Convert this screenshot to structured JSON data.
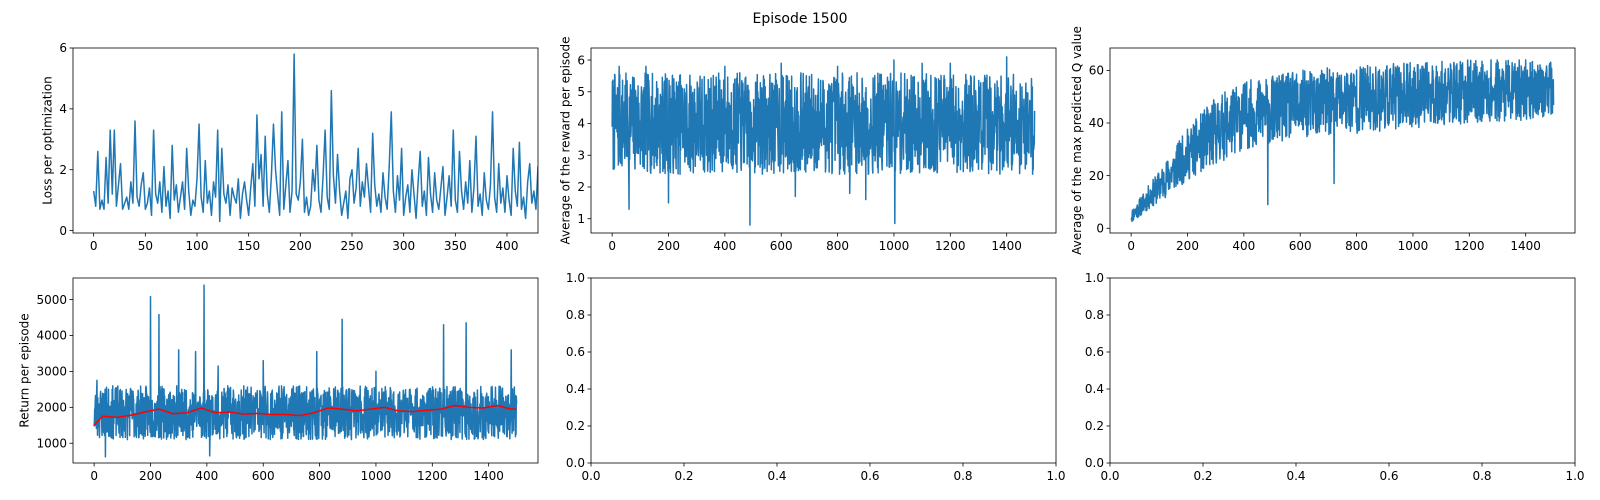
{
  "figure": {
    "suptitle": "Episode 1500"
  },
  "chart_data": [
    {
      "type": "line",
      "xlabel": "",
      "ylabel": "Loss per optimization",
      "xlim": [
        -20,
        430
      ],
      "ylim": [
        -0.08,
        6.0
      ],
      "xticks": [
        0,
        50,
        100,
        150,
        200,
        250,
        300,
        350,
        400
      ],
      "yticks": [
        0,
        2,
        4,
        6
      ],
      "series": [
        {
          "color": "#1f77b4",
          "x_start": 0,
          "x_step": 2,
          "y": [
            1.3,
            0.8,
            2.6,
            0.7,
            1.0,
            0.7,
            2.4,
            0.9,
            3.3,
            1.2,
            3.3,
            0.8,
            1.5,
            2.2,
            0.7,
            0.9,
            1.1,
            0.7,
            1.6,
            0.9,
            3.6,
            1.1,
            0.8,
            1.5,
            1.9,
            0.7,
            0.9,
            1.4,
            0.5,
            3.3,
            1.2,
            0.9,
            1.6,
            0.6,
            2.1,
            0.8,
            1.3,
            0.4,
            2.8,
            1.0,
            1.5,
            0.6,
            1.1,
            1.6,
            0.7,
            2.7,
            1.3,
            0.5,
            1.0,
            0.8,
            1.7,
            3.5,
            1.1,
            0.6,
            2.3,
            0.9,
            1.3,
            0.5,
            1.6,
            1.1,
            3.3,
            0.3,
            2.7,
            1.2,
            0.9,
            1.5,
            0.5,
            1.4,
            1.1,
            0.9,
            1.7,
            0.4,
            1.2,
            1.6,
            1.0,
            0.5,
            1.4,
            2.2,
            0.8,
            3.8,
            1.7,
            2.5,
            0.8,
            3.1,
            1.2,
            0.6,
            1.8,
            3.5,
            2.0,
            1.2,
            0.5,
            3.9,
            0.7,
            1.5,
            2.3,
            0.6,
            1.3,
            5.8,
            1.2,
            1.0,
            1.6,
            3.0,
            0.6,
            1.1,
            0.5,
            0.8,
            2.0,
            1.3,
            2.8,
            1.0,
            0.6,
            1.8,
            3.3,
            1.1,
            0.7,
            4.6,
            1.8,
            0.9,
            2.5,
            1.3,
            0.5,
            0.9,
            1.3,
            0.4,
            1.7,
            2.0,
            0.9,
            1.4,
            2.7,
            0.8,
            1.6,
            1.1,
            2.2,
            1.4,
            0.6,
            3.2,
            1.5,
            0.8,
            1.2,
            0.6,
            1.9,
            1.1,
            0.7,
            2.1,
            3.9,
            1.3,
            0.6,
            1.8,
            1.0,
            2.7,
            0.5,
            1.1,
            1.5,
            0.6,
            2.0,
            1.2,
            0.4,
            1.6,
            2.6,
            0.8,
            1.3,
            0.5,
            2.4,
            1.2,
            0.6,
            1.9,
            1.0,
            0.7,
            1.4,
            2.1,
            0.5,
            1.1,
            1.8,
            0.8,
            3.3,
            1.0,
            0.6,
            2.6,
            1.3,
            0.7,
            1.6,
            0.9,
            2.3,
            0.6,
            1.4,
            3.1,
            0.8,
            1.2,
            0.5,
            1.9,
            1.0,
            0.7,
            1.5,
            3.9,
            1.1,
            0.6,
            2.2,
            0.9,
            1.4,
            0.6,
            1.8,
            1.0,
            0.5,
            2.7,
            1.3,
            0.8,
            2.9,
            0.7,
            1.1,
            0.4,
            1.6,
            2.2,
            0.9,
            1.3,
            0.7,
            2.1,
            0.6,
            1.0,
            0.6
          ]
        }
      ]
    },
    {
      "type": "line",
      "xlabel": "",
      "ylabel": "Average of the reward per episode",
      "xlim": [
        -75,
        1575
      ],
      "ylim": [
        0.55,
        6.38
      ],
      "xticks": [
        0,
        200,
        400,
        600,
        800,
        1000,
        1200,
        1400
      ],
      "yticks": [
        1,
        2,
        3,
        4,
        5,
        6
      ],
      "series": [
        {
          "color": "#1f77b4",
          "x_start": 0,
          "x_step": 1,
          "n_points": 1500,
          "band_lo": 2.4,
          "band_hi": 5.6,
          "noise_seed": 7,
          "spikes": [
            [
              0,
              3.9
            ],
            [
              25,
              5.8
            ],
            [
              60,
              1.3
            ],
            [
              120,
              5.8
            ],
            [
              200,
              1.5
            ],
            [
              400,
              5.8
            ],
            [
              480,
              5.2
            ],
            [
              489,
              0.8
            ],
            [
              600,
              5.9
            ],
            [
              650,
              1.7
            ],
            [
              800,
              5.8
            ],
            [
              843,
              1.8
            ],
            [
              900,
              1.6
            ],
            [
              1000,
              6.0
            ],
            [
              1003,
              0.85
            ],
            [
              1100,
              5.9
            ],
            [
              1200,
              5.9
            ],
            [
              1400,
              6.1
            ],
            [
              1499,
              4.4
            ]
          ]
        }
      ]
    },
    {
      "type": "line",
      "xlabel": "",
      "ylabel": "Average of the max predicted Q value",
      "xlim": [
        -75,
        1575
      ],
      "ylim": [
        -1.8,
        68.5
      ],
      "xticks": [
        0,
        200,
        400,
        600,
        800,
        1000,
        1200,
        1400
      ],
      "yticks": [
        0,
        20,
        40,
        60
      ],
      "series": [
        {
          "color": "#1f77b4",
          "x_start": 0,
          "x_step": 1,
          "n_points": 1500,
          "trend_x": [
            0,
            100,
            200,
            300,
            400,
            600,
            800,
            1000,
            1200,
            1400,
            1500
          ],
          "trend_lo": [
            2,
            10,
            18,
            24,
            30,
            34,
            36,
            38,
            40,
            41,
            43
          ],
          "trend_hi": [
            7,
            22,
            38,
            50,
            56,
            60,
            62,
            63,
            64,
            64,
            63
          ],
          "noise_seed": 11,
          "spikes": [
            [
              485,
              9
            ],
            [
              720,
              17
            ],
            [
              1400,
              64
            ]
          ]
        }
      ]
    },
    {
      "type": "line",
      "xlabel": "",
      "ylabel": "Return per episode",
      "xlim": [
        -75,
        1575
      ],
      "ylim": [
        450,
        5600
      ],
      "xticks": [
        0,
        200,
        400,
        600,
        800,
        1000,
        1200,
        1400
      ],
      "yticks": [
        1000,
        2000,
        3000,
        4000,
        5000
      ],
      "series": [
        {
          "color": "#1f77b4",
          "x_start": 0,
          "x_step": 1,
          "n_points": 1500,
          "band_lo": 1100,
          "band_hi": 2600,
          "noise_seed": 23,
          "spikes": [
            [
              10,
              2750
            ],
            [
              40,
              620
            ],
            [
              200,
              5080
            ],
            [
              230,
              4580
            ],
            [
              300,
              3600
            ],
            [
              360,
              3550
            ],
            [
              390,
              5400
            ],
            [
              410,
              650
            ],
            [
              440,
              3150
            ],
            [
              600,
              3300
            ],
            [
              790,
              3550
            ],
            [
              880,
              4450
            ],
            [
              1000,
              3000
            ],
            [
              1240,
              4300
            ],
            [
              1320,
              4350
            ],
            [
              1480,
              3600
            ],
            [
              1499,
              2100
            ]
          ]
        },
        {
          "color": "#ff0000",
          "x": [
            0,
            30,
            80,
            130,
            180,
            230,
            280,
            330,
            380,
            430,
            480,
            530,
            580,
            630,
            680,
            730,
            780,
            830,
            880,
            930,
            980,
            1030,
            1080,
            1130,
            1180,
            1230,
            1280,
            1330,
            1380,
            1430,
            1480,
            1499
          ],
          "y": [
            1500,
            1750,
            1720,
            1780,
            1870,
            1950,
            1820,
            1850,
            1980,
            1850,
            1870,
            1810,
            1830,
            1800,
            1800,
            1770,
            1850,
            1980,
            1950,
            1900,
            1950,
            2000,
            1900,
            1880,
            1920,
            1950,
            2050,
            2000,
            1980,
            2050,
            1950,
            1950
          ]
        }
      ]
    },
    {
      "type": "line",
      "xlabel": "",
      "ylabel": "",
      "xlim": [
        0,
        1
      ],
      "ylim": [
        0,
        1
      ],
      "xticks": [
        0,
        0.2,
        0.4,
        0.6,
        0.8,
        1.0
      ],
      "yticks": [
        0,
        0.2,
        0.4,
        0.6,
        0.8,
        1.0
      ],
      "series": []
    },
    {
      "type": "line",
      "xlabel": "",
      "ylabel": "",
      "xlim": [
        0,
        1
      ],
      "ylim": [
        0,
        1
      ],
      "xticks": [
        0,
        0.2,
        0.4,
        0.6,
        0.8,
        1.0
      ],
      "yticks": [
        0,
        0.2,
        0.4,
        0.6,
        0.8,
        1.0
      ],
      "series": []
    }
  ]
}
